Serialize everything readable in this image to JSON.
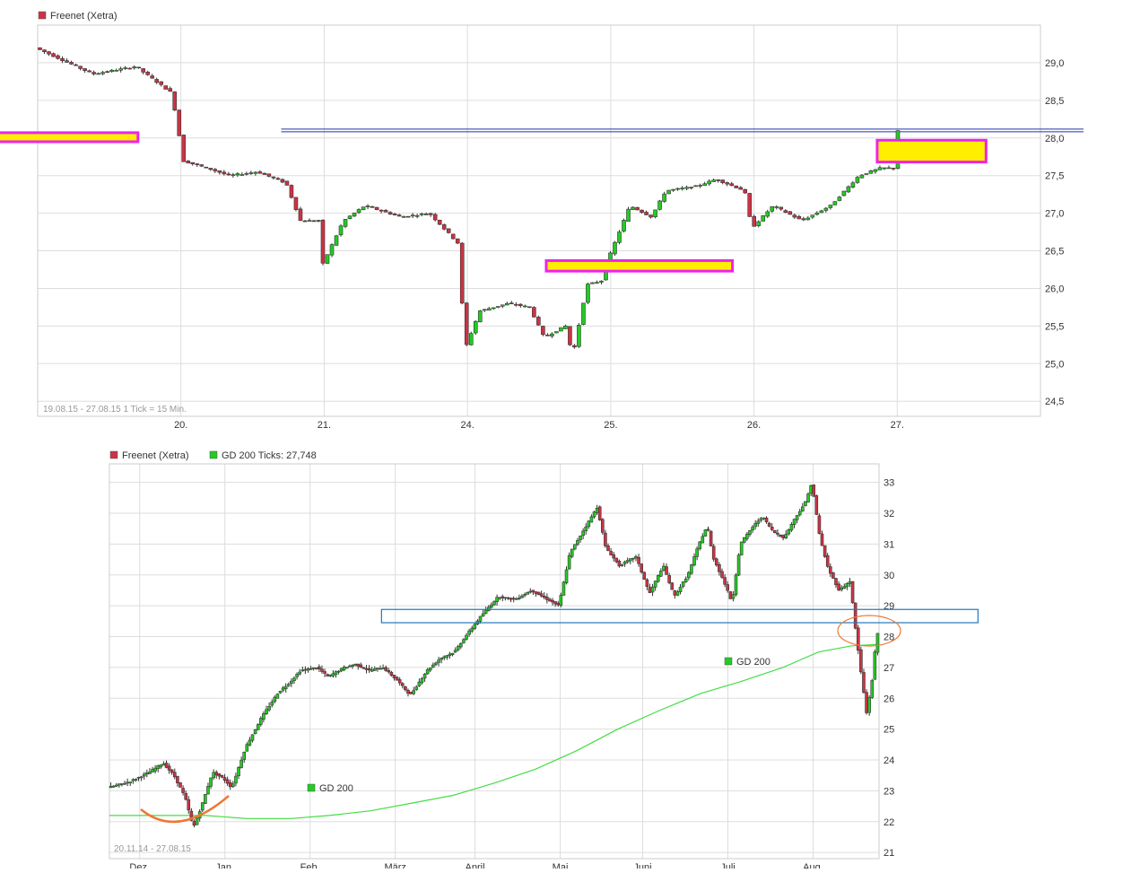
{
  "colors": {
    "up": "#22cc22",
    "down": "#cc3344",
    "grid": "#dddddd",
    "frame": "#cccccc",
    "sma": "#44dd44",
    "resistance_line": "#2233aa",
    "zone_fill": "#ffee00",
    "zone_border": "#ee22ee",
    "box_border": "#2277bb",
    "annotation": "#ee7733"
  },
  "chart_data": [
    {
      "type": "candlestick",
      "legend": [
        {
          "label": "Freenet (Xetra)",
          "color": "#cc3344"
        }
      ],
      "ylim": [
        24.3,
        29.5
      ],
      "yticks": [
        "29,0",
        "28,5",
        "28,0",
        "27,5",
        "27,0",
        "26,5",
        "26,0",
        "25,5",
        "25,0",
        "24,5"
      ],
      "ytick_values": [
        29.0,
        28.5,
        28.0,
        27.5,
        27.0,
        26.5,
        26.0,
        25.5,
        25.0,
        24.5
      ],
      "xticks": [
        "20.",
        "21.",
        "24.",
        "25.",
        "26.",
        "27."
      ],
      "xtick_values": [
        1,
        2,
        3,
        4,
        5,
        6
      ],
      "xlim": [
        0,
        7
      ],
      "grid": true,
      "info": "19.08.15 - 27.08.15   1 Tick = 15 Min.",
      "anchors": [
        [
          0.0,
          29.2
        ],
        [
          0.4,
          28.85
        ],
        [
          0.7,
          28.95
        ],
        [
          0.95,
          28.6
        ],
        [
          1.0,
          28.1
        ],
        [
          1.02,
          27.7
        ],
        [
          1.2,
          27.6
        ],
        [
          1.35,
          27.5
        ],
        [
          1.55,
          27.55
        ],
        [
          1.75,
          27.4
        ],
        [
          1.85,
          26.9
        ],
        [
          2.0,
          26.9
        ],
        [
          2.0,
          26.3
        ],
        [
          2.15,
          26.9
        ],
        [
          2.3,
          27.1
        ],
        [
          2.55,
          26.95
        ],
        [
          2.75,
          27.0
        ],
        [
          2.95,
          26.6
        ],
        [
          3.0,
          25.2
        ],
        [
          3.1,
          25.7
        ],
        [
          3.3,
          25.8
        ],
        [
          3.45,
          25.75
        ],
        [
          3.55,
          25.35
        ],
        [
          3.7,
          25.5
        ],
        [
          3.75,
          25.1
        ],
        [
          3.85,
          26.05
        ],
        [
          3.95,
          26.1
        ],
        [
          4.0,
          26.4
        ],
        [
          4.15,
          27.1
        ],
        [
          4.3,
          26.95
        ],
        [
          4.4,
          27.3
        ],
        [
          4.6,
          27.35
        ],
        [
          4.75,
          27.45
        ],
        [
          4.95,
          27.3
        ],
        [
          5.0,
          26.8
        ],
        [
          5.15,
          27.1
        ],
        [
          5.35,
          26.9
        ],
        [
          5.55,
          27.1
        ],
        [
          5.75,
          27.5
        ],
        [
          5.9,
          27.6
        ],
        [
          6.0,
          27.6
        ],
        [
          6.02,
          28.1
        ]
      ],
      "levels": [
        {
          "type": "horizontal_line",
          "y": 28.1,
          "x_from": 1.7,
          "x_to": 7.3
        }
      ],
      "zones": [
        {
          "x0": -0.6,
          "x1": 0.7,
          "y0": 27.95,
          "y1": 28.07
        },
        {
          "x0": 3.55,
          "x1": 4.85,
          "y0": 26.23,
          "y1": 26.37
        },
        {
          "x0": 5.86,
          "x1": 6.62,
          "y0": 27.68,
          "y1": 27.97
        }
      ]
    },
    {
      "type": "candlestick",
      "legend": [
        {
          "label": "Freenet (Xetra)",
          "color": "#cc3344"
        },
        {
          "label": "GD 200 Ticks: 27,748",
          "color": "#22cc22"
        }
      ],
      "series_labels": [
        "GD 200",
        "GD 200"
      ],
      "ylim": [
        20.8,
        33.6
      ],
      "yticks": [
        "33",
        "32",
        "31",
        "30",
        "29",
        "28",
        "27",
        "26",
        "25",
        "24",
        "23",
        "22",
        "21"
      ],
      "ytick_values": [
        33,
        32,
        31,
        30,
        29,
        28,
        27,
        26,
        25,
        24,
        23,
        22,
        21
      ],
      "xticks": [
        "Dez.",
        "Jan.",
        "Feb.",
        "März",
        "April",
        "Mai",
        "Juni",
        "Juli",
        "Aug."
      ],
      "xtick_values": [
        11,
        42,
        73,
        104,
        133,
        164,
        194,
        225,
        256
      ],
      "xlim": [
        0,
        280
      ],
      "grid": true,
      "info": "20.11.14 - 27.08.15",
      "anchors": [
        [
          0,
          23.1
        ],
        [
          8,
          23.3
        ],
        [
          15,
          23.6
        ],
        [
          20,
          23.9
        ],
        [
          24,
          23.5
        ],
        [
          28,
          22.8
        ],
        [
          31,
          21.8
        ],
        [
          34,
          22.5
        ],
        [
          38,
          23.6
        ],
        [
          42,
          23.4
        ],
        [
          45,
          23.1
        ],
        [
          50,
          24.4
        ],
        [
          56,
          25.4
        ],
        [
          62,
          26.2
        ],
        [
          66,
          26.5
        ],
        [
          70,
          26.9
        ],
        [
          76,
          27.0
        ],
        [
          80,
          26.7
        ],
        [
          86,
          27.0
        ],
        [
          90,
          27.1
        ],
        [
          95,
          26.9
        ],
        [
          100,
          27.0
        ],
        [
          105,
          26.6
        ],
        [
          110,
          26.1
        ],
        [
          116,
          26.9
        ],
        [
          121,
          27.3
        ],
        [
          126,
          27.5
        ],
        [
          130,
          28.0
        ],
        [
          136,
          28.7
        ],
        [
          142,
          29.3
        ],
        [
          148,
          29.2
        ],
        [
          154,
          29.5
        ],
        [
          160,
          29.2
        ],
        [
          164,
          29.0
        ],
        [
          168,
          30.7
        ],
        [
          174,
          31.6
        ],
        [
          178,
          32.2
        ],
        [
          181,
          30.9
        ],
        [
          186,
          30.3
        ],
        [
          192,
          30.6
        ],
        [
          197,
          29.4
        ],
        [
          202,
          30.3
        ],
        [
          206,
          29.3
        ],
        [
          211,
          30.0
        ],
        [
          215,
          31.0
        ],
        [
          218,
          31.6
        ],
        [
          220,
          30.6
        ],
        [
          224,
          29.8
        ],
        [
          227,
          29.1
        ],
        [
          230,
          31.0
        ],
        [
          234,
          31.5
        ],
        [
          238,
          31.9
        ],
        [
          242,
          31.4
        ],
        [
          246,
          31.2
        ],
        [
          249,
          31.7
        ],
        [
          254,
          32.4
        ],
        [
          256,
          33.0
        ],
        [
          259,
          31.2
        ],
        [
          262,
          30.2
        ],
        [
          266,
          29.5
        ],
        [
          270,
          29.8
        ],
        [
          272,
          28.2
        ],
        [
          274,
          26.8
        ],
        [
          276,
          25.5
        ],
        [
          278,
          26.6
        ],
        [
          279,
          27.5
        ],
        [
          280,
          28.1
        ]
      ],
      "sma_200": [
        [
          0,
          22.2
        ],
        [
          20,
          22.2
        ],
        [
          35,
          22.2
        ],
        [
          50,
          22.1
        ],
        [
          66,
          22.1
        ],
        [
          80,
          22.2
        ],
        [
          95,
          22.35
        ],
        [
          110,
          22.6
        ],
        [
          125,
          22.85
        ],
        [
          140,
          23.25
        ],
        [
          155,
          23.7
        ],
        [
          170,
          24.3
        ],
        [
          185,
          25.0
        ],
        [
          200,
          25.6
        ],
        [
          215,
          26.15
        ],
        [
          230,
          26.55
        ],
        [
          245,
          27.0
        ],
        [
          258,
          27.5
        ],
        [
          270,
          27.7
        ],
        [
          280,
          27.75
        ]
      ],
      "zones": [
        {
          "x0": 99,
          "x1": 316,
          "y0": 28.45,
          "y1": 28.88
        }
      ]
    }
  ]
}
